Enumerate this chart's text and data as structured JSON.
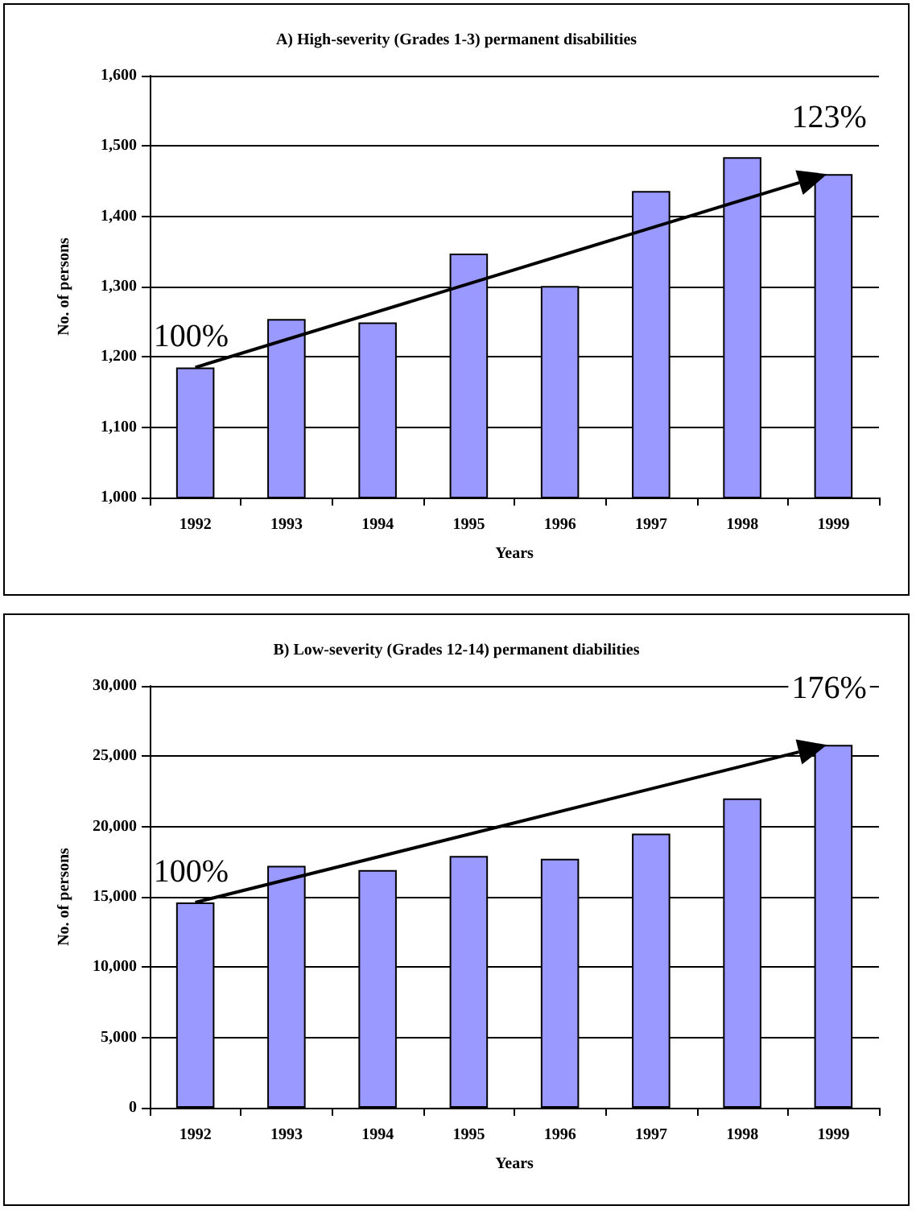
{
  "chart_data": [
    {
      "type": "bar",
      "title": "A) High-severity (Grades 1-3) permanent disabilities",
      "xlabel": "Years",
      "ylabel": "No. of persons",
      "categories": [
        "1992",
        "1993",
        "1994",
        "1995",
        "1996",
        "1997",
        "1998",
        "1999"
      ],
      "values": [
        1185,
        1254,
        1249,
        1347,
        1301,
        1436,
        1484,
        1460
      ],
      "color": "#9999ff",
      "ylim": [
        1000,
        1600
      ],
      "yticks": [
        {
          "value": 1000,
          "label": "1,000"
        },
        {
          "value": 1100,
          "label": "1,100"
        },
        {
          "value": 1200,
          "label": "1,200"
        },
        {
          "value": 1300,
          "label": "1,300"
        },
        {
          "value": 1400,
          "label": "1,400"
        },
        {
          "value": 1500,
          "label": "1,500"
        },
        {
          "value": 1600,
          "label": "1,600"
        }
      ],
      "grid": "y",
      "annotations": [
        {
          "text": "100%",
          "x": "1992",
          "y": 1185
        },
        {
          "text": "123%",
          "x": "1999",
          "y": 1460
        }
      ]
    },
    {
      "type": "bar",
      "title": "B) Low-severity (Grades 12-14) permanent diabilities",
      "xlabel": "Years",
      "ylabel": "No. of persons",
      "categories": [
        "1992",
        "1993",
        "1994",
        "1995",
        "1996",
        "1997",
        "1998",
        "1999"
      ],
      "values": [
        14600,
        17200,
        16900,
        17900,
        17700,
        19500,
        22000,
        25800
      ],
      "color": "#9999ff",
      "ylim": [
        0,
        30000
      ],
      "yticks": [
        0,
        {
          "value": 5000,
          "label": "5,000"
        },
        {
          "value": 10000,
          "label": "10,000"
        },
        {
          "value": 15000,
          "label": "15,000"
        },
        {
          "value": 20000,
          "label": "20,000"
        },
        {
          "value": 25000,
          "label": "25,000"
        },
        {
          "value": 30000,
          "label": "30,000"
        }
      ],
      "grid": "y",
      "annotations": [
        {
          "text": "100%",
          "x": "1992",
          "y": 14600
        },
        {
          "text": "176%",
          "x": "1999",
          "y": 25800
        }
      ]
    }
  ]
}
